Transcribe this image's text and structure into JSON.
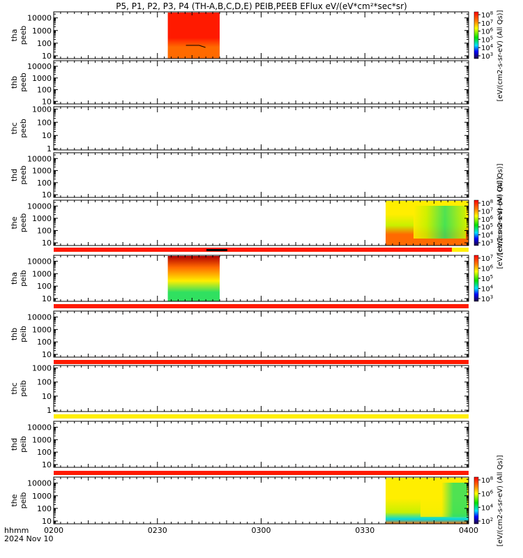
{
  "title": "P5, P1, P2, P3, P4 (TH-A,B,C,D,E) PEIB,PEEB EFlux eV/(eV*cm²*sec*sr)",
  "colors": {
    "red": "#ff1a00",
    "orange": "#ff6a00",
    "yellow": "#ffee00",
    "yellow_green": "#c8f000",
    "green": "#30e060",
    "cyan": "#00d8e0",
    "dark_red": "#b00000"
  },
  "chart_data": {
    "type": "heatmap",
    "x_axis": {
      "ticks": [
        "0200",
        "0230",
        "0300",
        "0330",
        "0400"
      ],
      "range": [
        "0200",
        "0400"
      ],
      "label_line1": "hhmm",
      "label_line2": "2024 Nov 10"
    },
    "panels": [
      {
        "id": "tha-peeb",
        "label_line1": "tha",
        "label_line2": "peeb",
        "yscale": "log",
        "ylim": [
          6,
          30000
        ],
        "yticks": [
          "10",
          "100",
          "1000",
          "10000"
        ],
        "data_span": [
          "0233",
          "0248"
        ],
        "bar_color": ""
      },
      {
        "id": "thb-peeb",
        "label_line1": "thb",
        "label_line2": "peeb",
        "yscale": "log",
        "ylim": [
          6,
          30000
        ],
        "yticks": [
          "10",
          "100",
          "1000",
          "10000"
        ],
        "data_span": null,
        "bar_color": ""
      },
      {
        "id": "thc-peeb",
        "label_line1": "thc",
        "label_line2": "peeb",
        "yscale": "log",
        "ylim": [
          0.8,
          1500
        ],
        "yticks": [
          "1",
          "10",
          "100",
          "1000"
        ],
        "data_span": null,
        "bar_color": ""
      },
      {
        "id": "thd-peeb",
        "label_line1": "thd",
        "label_line2": "peeb",
        "yscale": "log",
        "ylim": [
          6,
          30000
        ],
        "yticks": [
          "10",
          "100",
          "1000",
          "10000"
        ],
        "data_span": null,
        "bar_color": ""
      },
      {
        "id": "the-peeb",
        "label_line1": "the",
        "label_line2": "peeb",
        "yscale": "log",
        "ylim": [
          6,
          30000
        ],
        "yticks": [
          "10",
          "100",
          "1000",
          "10000"
        ],
        "data_span": [
          "0336",
          "0400"
        ],
        "bar_color": "red"
      },
      {
        "id": "tha-peib",
        "label_line1": "tha",
        "label_line2": "peib",
        "yscale": "log",
        "ylim": [
          6,
          30000
        ],
        "yticks": [
          "10",
          "100",
          "1000",
          "10000"
        ],
        "data_span": [
          "0233",
          "0248"
        ],
        "bar_color": "red"
      },
      {
        "id": "thb-peib",
        "label_line1": "thb",
        "label_line2": "peib",
        "yscale": "log",
        "ylim": [
          6,
          30000
        ],
        "yticks": [
          "10",
          "100",
          "1000",
          "10000"
        ],
        "data_span": null,
        "bar_color": "red"
      },
      {
        "id": "thc-peib",
        "label_line1": "thc",
        "label_line2": "peib",
        "yscale": "log",
        "ylim": [
          0.8,
          1500
        ],
        "yticks": [
          "1",
          "10",
          "100",
          "1000"
        ],
        "data_span": null,
        "bar_color": "yellow"
      },
      {
        "id": "thd-peib",
        "label_line1": "thd",
        "label_line2": "peib",
        "yscale": "log",
        "ylim": [
          6,
          30000
        ],
        "yticks": [
          "10",
          "100",
          "1000",
          "10000"
        ],
        "data_span": null,
        "bar_color": "red"
      },
      {
        "id": "the-peib",
        "label_line1": "the",
        "label_line2": "peib",
        "yscale": "log",
        "ylim": [
          6,
          30000
        ],
        "yticks": [
          "10",
          "100",
          "1000",
          "10000"
        ],
        "data_span": [
          "0336",
          "0400"
        ],
        "bar_color": ""
      }
    ],
    "colorbars": [
      {
        "id": "cb-tha-peeb",
        "panel": 0,
        "mantissa": "10",
        "exponents": [
          "8",
          "7",
          "6",
          "5",
          "4",
          "3"
        ],
        "label": "[eV/(cm2-s-sr-eV) (All Qs)]"
      },
      {
        "id": "cb-the-peeb",
        "panel": 4,
        "mantissa": "10",
        "exponents": [
          "8",
          "7",
          "6",
          "5",
          "4",
          "3"
        ],
        "label": "[eV/(cm2-s-sr-eV) (All Qs)]"
      },
      {
        "id": "cb-tha-peib",
        "panel": 5,
        "mantissa": "10",
        "exponents": [
          "7",
          "6",
          "5",
          "4",
          "3"
        ],
        "label": "[eV/(cm2-s-sr-eV) (All Qs)]"
      },
      {
        "id": "cb-the-peib",
        "panel": 9,
        "mantissa": "10",
        "exponents": [
          "8",
          "6",
          "4",
          "2"
        ],
        "label": "[eV/(cm2-s-sr-eV) (All Qs)]"
      }
    ]
  }
}
